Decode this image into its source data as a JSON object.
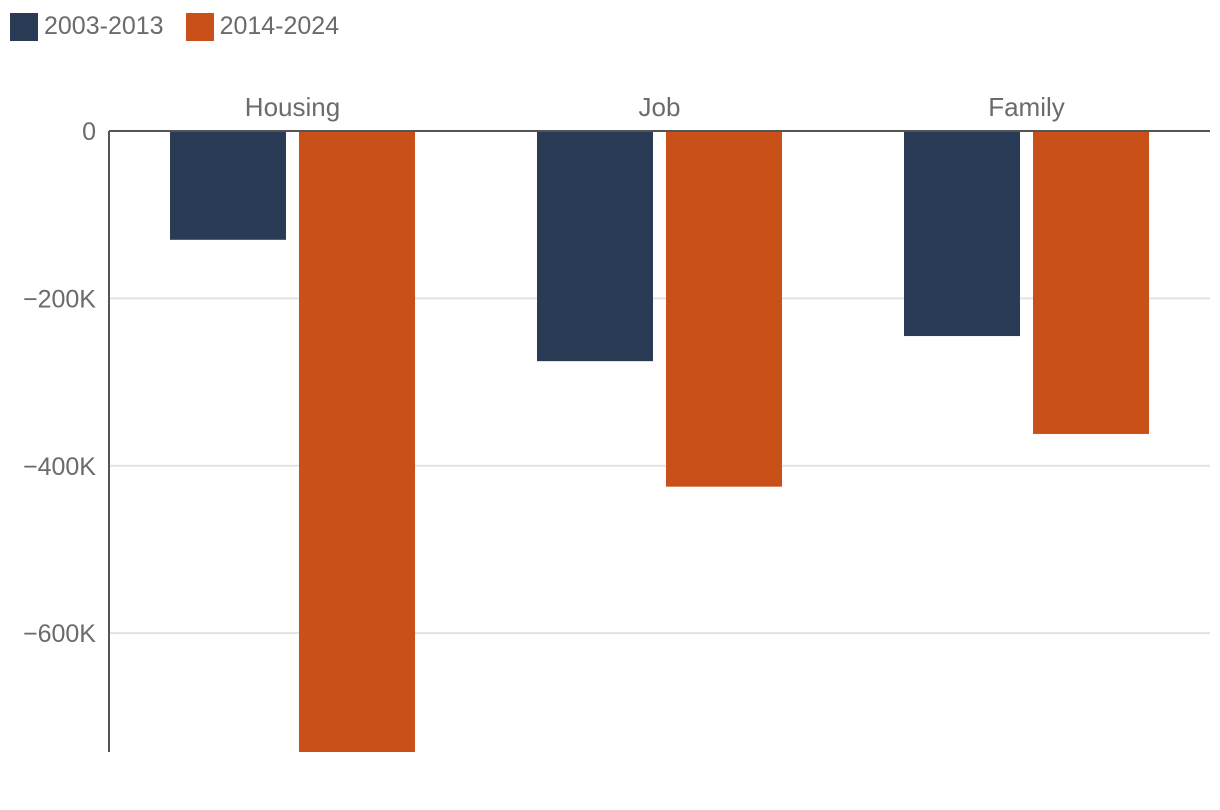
{
  "chart_data": {
    "type": "bar",
    "title": "",
    "xlabel": "",
    "ylabel": "",
    "categories": [
      "Housing",
      "Job",
      "Family"
    ],
    "series": [
      {
        "name": "2003-2013",
        "color": "#2a3b55",
        "values": [
          -130000,
          -275000,
          -245000
        ]
      },
      {
        "name": "2014-2024",
        "color": "#ca5019",
        "values": [
          -742000,
          -425000,
          -362000
        ]
      }
    ],
    "ylim": [
      -742000,
      0
    ],
    "yticks": [
      0,
      -200000,
      -400000,
      -600000
    ],
    "ytick_labels": [
      "0",
      "−200K",
      "−400K",
      "−600K"
    ],
    "grid": true,
    "legend_position": "top-left",
    "category_label_position": "top"
  }
}
